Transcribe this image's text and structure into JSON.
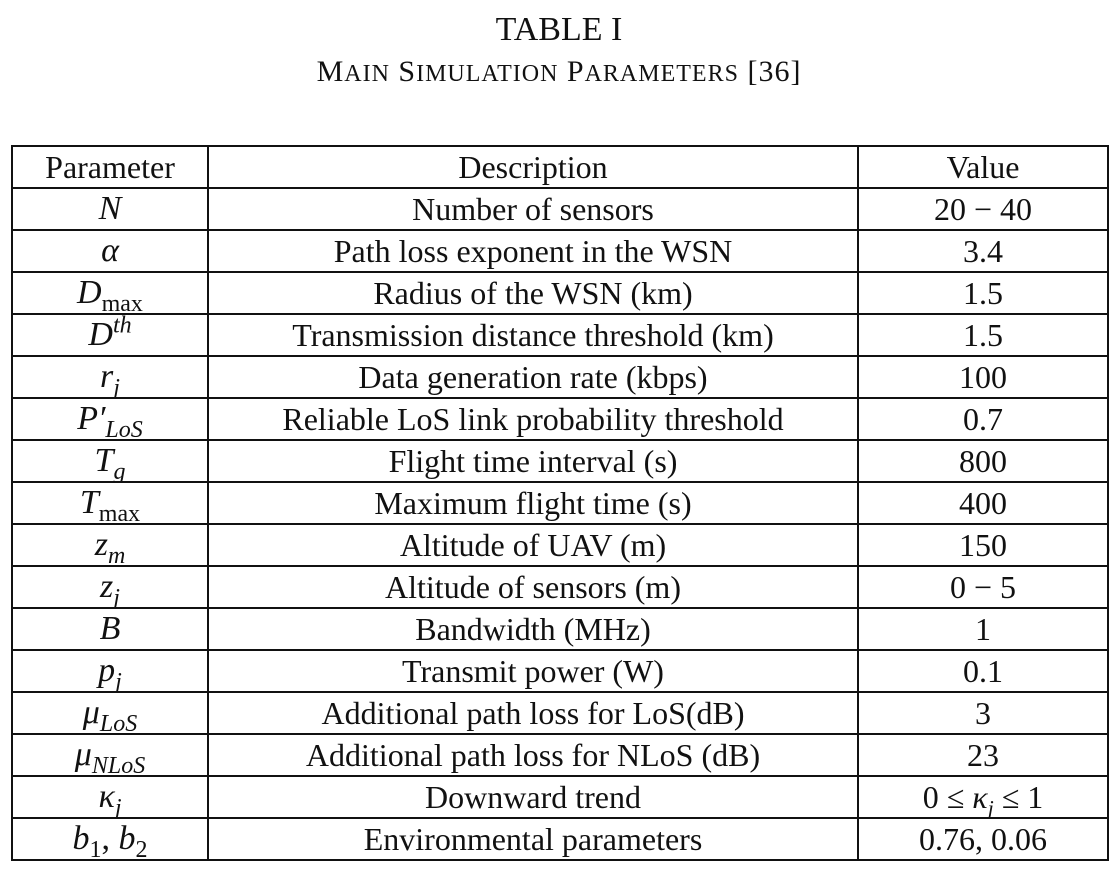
{
  "table": {
    "number": "TABLE I",
    "caption": "Main Simulation Parameters [36]",
    "headers": [
      "Parameter",
      "Description",
      "Value"
    ],
    "rows": [
      {
        "symbol": "N",
        "description": "Number of sensors",
        "value": "20 − 40"
      },
      {
        "symbol": "α",
        "description": "Path loss exponent in the WSN",
        "value": "3.4"
      },
      {
        "symbol": "D_max",
        "description": "Radius of the WSN (km)",
        "value": "1.5"
      },
      {
        "symbol": "D^th",
        "description": "Transmission distance threshold (km)",
        "value": "1.5"
      },
      {
        "symbol": "r_j",
        "description": "Data generation rate (kbps)",
        "value": "100"
      },
      {
        "symbol": "P'_LoS",
        "description": "Reliable LoS link probability threshold",
        "value": "0.7"
      },
      {
        "symbol": "T_g",
        "description": "Flight time interval (s)",
        "value": "800"
      },
      {
        "symbol": "T_max",
        "description": "Maximum flight time (s)",
        "value": "400"
      },
      {
        "symbol": "z_m",
        "description": "Altitude of UAV (m)",
        "value": "150"
      },
      {
        "symbol": "z_j",
        "description": "Altitude of sensors (m)",
        "value": "0 − 5"
      },
      {
        "symbol": "B",
        "description": "Bandwidth (MHz)",
        "value": "1"
      },
      {
        "symbol": "p_j",
        "description": "Transmit power (W)",
        "value": "0.1"
      },
      {
        "symbol": "μ_LoS",
        "description": "Additional path loss for LoS(dB)",
        "value": "3"
      },
      {
        "symbol": "μ_NLoS",
        "description": "Additional path loss for NLoS (dB)",
        "value": "23"
      },
      {
        "symbol": "κ_j",
        "description": "Downward trend",
        "value": "0 ≤ κ_j ≤ 1"
      },
      {
        "symbol": "b_1, b_2",
        "description": "Environmental parameters",
        "value": "0.76, 0.06"
      }
    ]
  }
}
